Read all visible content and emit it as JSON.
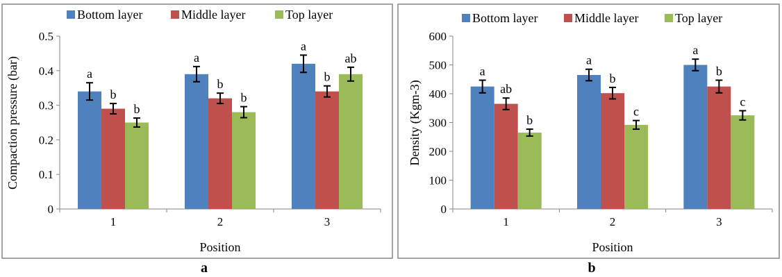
{
  "legend": [
    "Bottom layer",
    "Middle layer",
    "Top layer"
  ],
  "colors": {
    "bottom": "#4F81BD",
    "middle": "#C0504D",
    "top": "#9BBB59"
  },
  "chart_data": [
    {
      "panel_label": "a",
      "type": "bar",
      "xlabel": "Position",
      "ylabel": "Compaction pressure (bar)",
      "categories": [
        "1",
        "2",
        "3"
      ],
      "ylim": [
        0,
        0.5
      ],
      "yticks": [
        "0",
        "0.1",
        "0.2",
        "0.3",
        "0.4",
        "0.5"
      ],
      "legend_position": "top",
      "grid": false,
      "series": [
        {
          "name": "Bottom layer",
          "values": [
            0.34,
            0.39,
            0.42
          ],
          "errors": [
            0.025,
            0.022,
            0.025
          ],
          "letters": [
            "a",
            "a",
            "a"
          ]
        },
        {
          "name": "Middle layer",
          "values": [
            0.29,
            0.32,
            0.34
          ],
          "errors": [
            0.015,
            0.015,
            0.016
          ],
          "letters": [
            "b",
            "b",
            "b"
          ]
        },
        {
          "name": "Top layer",
          "values": [
            0.25,
            0.28,
            0.39
          ],
          "errors": [
            0.013,
            0.016,
            0.02
          ],
          "letters": [
            "b",
            "b",
            "ab"
          ]
        }
      ]
    },
    {
      "panel_label": "b",
      "type": "bar",
      "xlabel": "Position",
      "ylabel": "Density (Kgm-3)",
      "categories": [
        "1",
        "2",
        "3"
      ],
      "ylim": [
        0,
        600
      ],
      "yticks": [
        "0",
        "100",
        "200",
        "300",
        "400",
        "500",
        "600"
      ],
      "legend_position": "top",
      "grid": false,
      "series": [
        {
          "name": "Bottom layer",
          "values": [
            425,
            465,
            500
          ],
          "errors": [
            22,
            20,
            20
          ],
          "letters": [
            "a",
            "a",
            "a"
          ]
        },
        {
          "name": "Middle layer",
          "values": [
            365,
            402,
            425
          ],
          "errors": [
            20,
            20,
            22
          ],
          "letters": [
            "ab",
            "b",
            "b"
          ]
        },
        {
          "name": "Top layer",
          "values": [
            265,
            292,
            325
          ],
          "errors": [
            12,
            15,
            16
          ],
          "letters": [
            "b",
            "c",
            "c"
          ]
        }
      ]
    }
  ]
}
